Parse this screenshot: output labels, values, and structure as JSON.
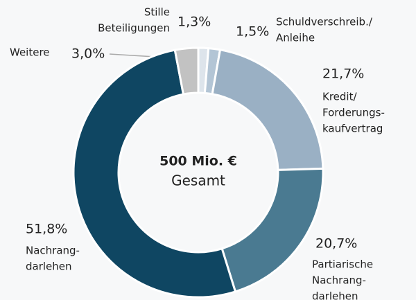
{
  "chart_data": {
    "type": "donut",
    "center_title": "500 Mio. €",
    "center_subtitle": "Gesamt",
    "categories": [
      [
        "Stille",
        "Beteiligungen"
      ],
      [
        "Schuldverschreib./",
        "Anleihe"
      ],
      [
        "Kredit/",
        "Forderungs-",
        "kaufvertrag"
      ],
      [
        "Partiarische",
        "Nachrang-",
        "darlehen"
      ],
      [
        "Nachrang-",
        "darlehen"
      ],
      [
        "Weitere"
      ]
    ],
    "values": [
      1.3,
      1.5,
      21.7,
      20.7,
      51.8,
      3.0
    ],
    "value_labels": [
      "1,3%",
      "1,5%",
      "21,7%",
      "20,7%",
      "51,8%",
      "3,0%"
    ],
    "colors": [
      "#dde4eb",
      "#b3c5d5",
      "#9ab0c4",
      "#4a7a91",
      "#0f4662",
      "#c2c2c2"
    ]
  }
}
